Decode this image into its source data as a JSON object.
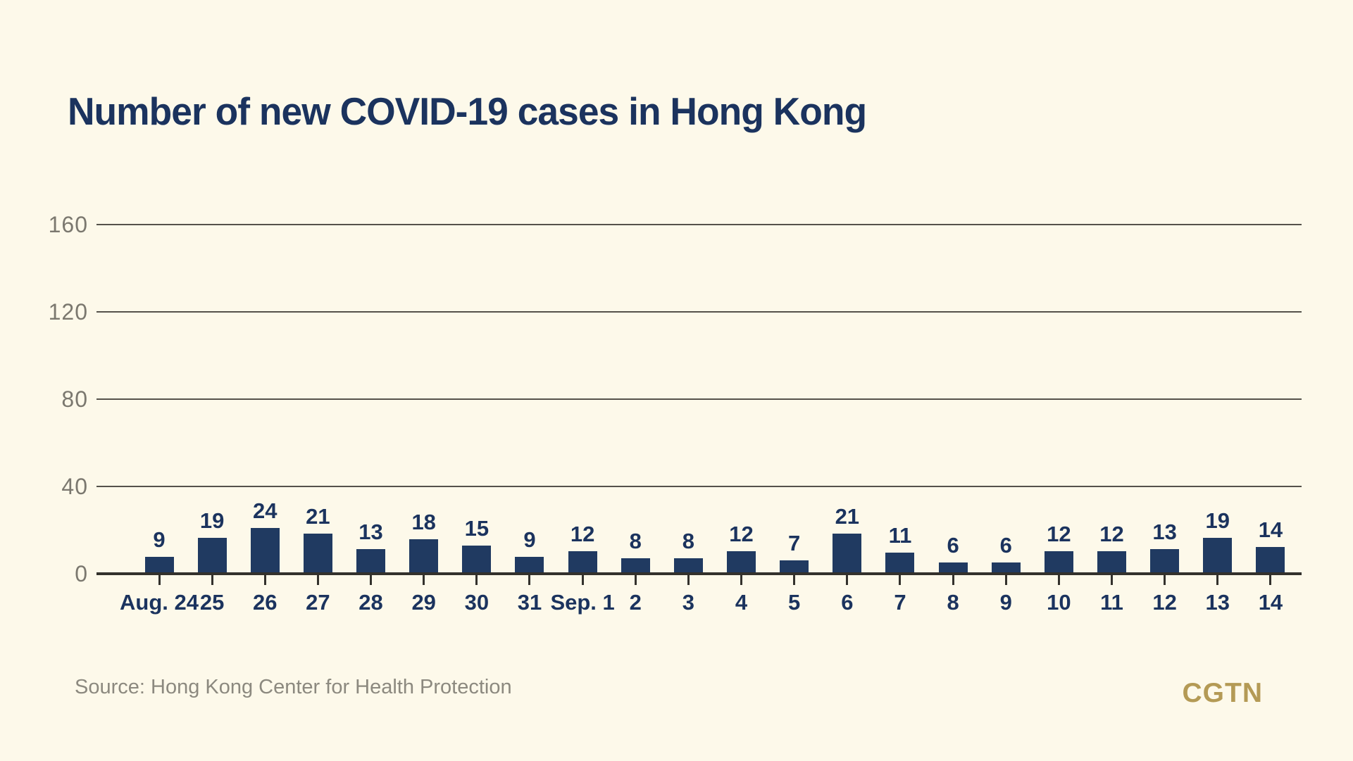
{
  "title": "Number of new COVID-19 cases in Hong Kong",
  "chart_data": {
    "type": "bar",
    "title": "Number of new COVID-19 cases in Hong Kong",
    "categories": [
      "Aug. 24",
      "25",
      "26",
      "27",
      "28",
      "29",
      "30",
      "31",
      "Sep. 1",
      "2",
      "3",
      "4",
      "5",
      "6",
      "7",
      "8",
      "9",
      "10",
      "11",
      "12",
      "13",
      "14"
    ],
    "values": [
      9,
      19,
      24,
      21,
      13,
      18,
      15,
      9,
      12,
      8,
      8,
      12,
      7,
      21,
      11,
      6,
      6,
      12,
      12,
      13,
      19,
      14
    ],
    "xlabel": "",
    "ylabel": "",
    "yticks": [
      0,
      40,
      80,
      120,
      160
    ],
    "ylim": [
      0,
      200
    ],
    "grid": "horizontal",
    "legend": "none",
    "data_labels": "above-bars",
    "colors": {
      "background": "#FDF9EA",
      "bar": "#203A61",
      "value_label": "#1B335E",
      "y_axis_label": "#7B786F",
      "gridline": "#55524B",
      "axis_line": "#33312C"
    }
  },
  "footer": {
    "source": "Source: Hong Kong Center for Health Protection",
    "logo": "CGTN",
    "logo_color": "#B49A55"
  }
}
